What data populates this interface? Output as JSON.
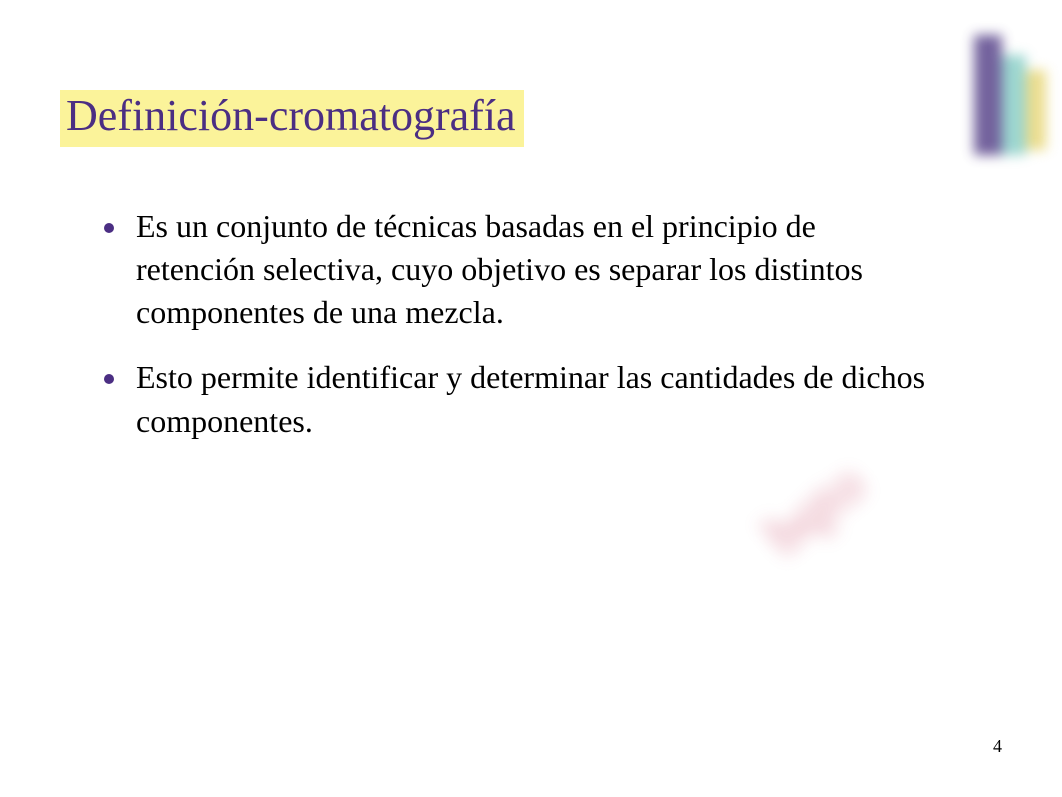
{
  "slide": {
    "title": "Definición-cromatografía",
    "title_color": "#4b2e83",
    "title_highlight_bg": "#fbf39a",
    "title_fontsize": 44,
    "bullets": [
      "Es un conjunto de técnicas basadas en el principio de retención selectiva, cuyo objetivo es separar los distintos componentes de una mezcla.",
      "Esto permite identificar y determinar las cantidades de dichos componentes."
    ],
    "body_fontsize": 32,
    "body_color": "#000000",
    "bullet_marker_color": "#4b2e83",
    "page_number": "4",
    "background_color": "#ffffff"
  },
  "decor": {
    "logo_colors": [
      "#5b478c",
      "#8bcfc8",
      "#e8d77a"
    ],
    "watermark_color": "#c63a5a"
  }
}
